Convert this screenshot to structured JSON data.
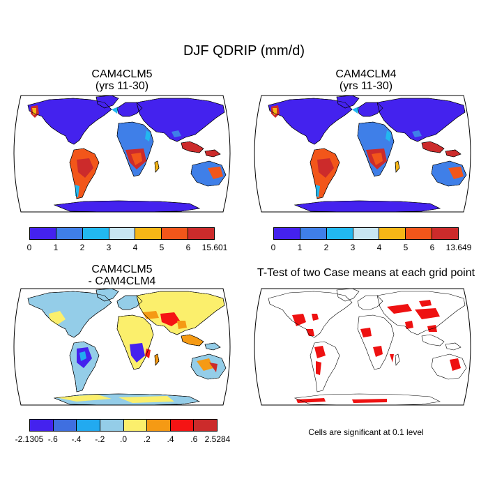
{
  "title": "DJF QDRIP (mm/d)",
  "panels": [
    {
      "id": "cam4clm5",
      "title_line1": "CAM4CLM5",
      "title_line2": "(yrs 11-30)",
      "colorbar": {
        "colors": [
          "#4422ee",
          "#3f7fe8",
          "#22b8f0",
          "#c8e6f2",
          "#f6b616",
          "#f2561a",
          "#cc2b2b"
        ],
        "tick_labels": [
          "0",
          "1",
          "2",
          "3",
          "4",
          "5",
          "6",
          "15.601"
        ]
      }
    },
    {
      "id": "cam4clm4",
      "title_line1": "CAM4CLM4",
      "title_line2": "(yrs 11-30)",
      "colorbar": {
        "colors": [
          "#4422ee",
          "#3f7fe8",
          "#22b8f0",
          "#c8e6f2",
          "#f6b616",
          "#f2561a",
          "#cc2b2b"
        ],
        "tick_labels": [
          "0",
          "1",
          "2",
          "3",
          "4",
          "5",
          "6",
          "13.649"
        ]
      }
    },
    {
      "id": "difference",
      "title_line1": "CAM4CLM5",
      "title_line2": "- CAM4CLM4",
      "colorbar": {
        "colors": [
          "#4422ee",
          "#3f6fe0",
          "#22aaf0",
          "#94cde8",
          "#fbef6c",
          "#f59a14",
          "#f51414",
          "#cc2b2b"
        ],
        "tick_labels": [
          "-2.1305",
          "-.6",
          "-.4",
          "-.2",
          ".0",
          ".2",
          ".4",
          ".6",
          "2.5284"
        ]
      }
    },
    {
      "id": "ttest",
      "title_line1": "T-Test of two Case means at each grid point",
      "note": "Cells are significant at 0.1 level",
      "significant_color": "#ee1111"
    }
  ]
}
